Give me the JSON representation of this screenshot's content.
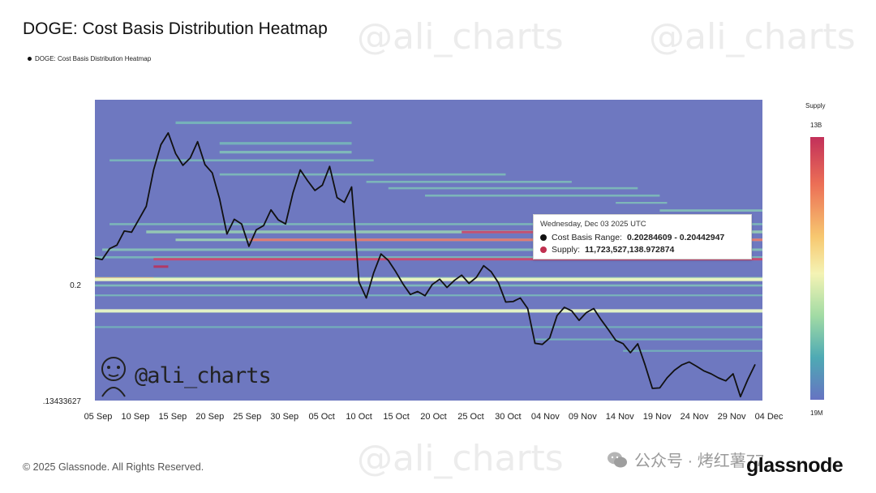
{
  "title": "DOGE: Cost Basis Distribution Heatmap",
  "legend_label": "DOGE: Cost Basis Distribution Heatmap",
  "watermark_text": "@ali_charts",
  "handle": "@ali_charts",
  "tooltip": {
    "date": "Wednesday, Dec 03 2025 UTC",
    "cost_basis_label": "Cost Basis Range:",
    "cost_basis_value": "0.20284609 - 0.20442947",
    "supply_label": "Supply:",
    "supply_value": "11,723,527,138.972874"
  },
  "colorbar": {
    "title": "Supply",
    "max_label": "13B",
    "min_label": "19M"
  },
  "footer": "© 2025 Glassnode. All Rights Reserved.",
  "brand": "glassnode",
  "wechat_text": "公众号 · 烤红薯77",
  "colors": {
    "price_line": "#111111",
    "heat_base": "#6e78c0",
    "tooltip_dot_cost": "#111111",
    "tooltip_dot_supply": "#c0304f"
  },
  "chart_data": {
    "type": "heatmap",
    "title": "DOGE: Cost Basis Distribution Heatmap",
    "y_tick_labels": [
      "0.2",
      ".13433627"
    ],
    "x_tick_labels": [
      "05 Sep",
      "10 Sep",
      "15 Sep",
      "20 Sep",
      "25 Sep",
      "30 Sep",
      "05 Oct",
      "10 Oct",
      "15 Oct",
      "20 Oct",
      "25 Oct",
      "30 Oct",
      "04 Nov",
      "09 Nov",
      "14 Nov",
      "19 Nov",
      "24 Nov",
      "29 Nov",
      "04 Dec"
    ],
    "x_start": "2025-09-04",
    "x_end": "2025-12-04",
    "ylim": [
      0.1343,
      0.305
    ],
    "price_series": {
      "name": "DOGE price",
      "points": [
        [
          "2025-09-04",
          0.2152
        ],
        [
          "2025-09-05",
          0.2143
        ],
        [
          "2025-09-06",
          0.2205
        ],
        [
          "2025-09-07",
          0.2225
        ],
        [
          "2025-09-08",
          0.2305
        ],
        [
          "2025-09-09",
          0.2298
        ],
        [
          "2025-09-10",
          0.2372
        ],
        [
          "2025-09-11",
          0.2445
        ],
        [
          "2025-09-12",
          0.2652
        ],
        [
          "2025-09-13",
          0.2795
        ],
        [
          "2025-09-14",
          0.2862
        ],
        [
          "2025-09-15",
          0.2745
        ],
        [
          "2025-09-16",
          0.2678
        ],
        [
          "2025-09-17",
          0.272
        ],
        [
          "2025-09-18",
          0.2812
        ],
        [
          "2025-09-19",
          0.2682
        ],
        [
          "2025-09-20",
          0.2635
        ],
        [
          "2025-09-21",
          0.2488
        ],
        [
          "2025-09-22",
          0.2288
        ],
        [
          "2025-09-23",
          0.2372
        ],
        [
          "2025-09-24",
          0.2345
        ],
        [
          "2025-09-25",
          0.2218
        ],
        [
          "2025-09-26",
          0.2312
        ],
        [
          "2025-09-27",
          0.2336
        ],
        [
          "2025-09-28",
          0.2425
        ],
        [
          "2025-09-29",
          0.2368
        ],
        [
          "2025-09-30",
          0.2345
        ],
        [
          "2025-10-01",
          0.2522
        ],
        [
          "2025-10-02",
          0.2652
        ],
        [
          "2025-10-03",
          0.259
        ],
        [
          "2025-10-04",
          0.2535
        ],
        [
          "2025-10-05",
          0.2565
        ],
        [
          "2025-10-06",
          0.2672
        ],
        [
          "2025-10-07",
          0.2495
        ],
        [
          "2025-10-08",
          0.2468
        ],
        [
          "2025-10-09",
          0.2555
        ],
        [
          "2025-10-10",
          0.2015
        ],
        [
          "2025-10-11",
          0.1925
        ],
        [
          "2025-10-12",
          0.2068
        ],
        [
          "2025-10-13",
          0.2175
        ],
        [
          "2025-10-14",
          0.2138
        ],
        [
          "2025-10-15",
          0.2075
        ],
        [
          "2025-10-16",
          0.2005
        ],
        [
          "2025-10-17",
          0.1945
        ],
        [
          "2025-10-18",
          0.1962
        ],
        [
          "2025-10-19",
          0.1938
        ],
        [
          "2025-10-20",
          0.2002
        ],
        [
          "2025-10-21",
          0.2032
        ],
        [
          "2025-10-22",
          0.1985
        ],
        [
          "2025-10-23",
          0.2025
        ],
        [
          "2025-10-24",
          0.2055
        ],
        [
          "2025-10-25",
          0.2008
        ],
        [
          "2025-10-26",
          0.2042
        ],
        [
          "2025-10-27",
          0.2108
        ],
        [
          "2025-10-28",
          0.2075
        ],
        [
          "2025-10-29",
          0.2012
        ],
        [
          "2025-10-30",
          0.1902
        ],
        [
          "2025-10-31",
          0.1905
        ],
        [
          "2025-11-01",
          0.1925
        ],
        [
          "2025-11-02",
          0.1865
        ],
        [
          "2025-11-03",
          0.1668
        ],
        [
          "2025-11-04",
          0.1662
        ],
        [
          "2025-11-05",
          0.1698
        ],
        [
          "2025-11-06",
          0.1825
        ],
        [
          "2025-11-07",
          0.1872
        ],
        [
          "2025-11-08",
          0.1852
        ],
        [
          "2025-11-09",
          0.1798
        ],
        [
          "2025-11-10",
          0.1842
        ],
        [
          "2025-11-11",
          0.1865
        ],
        [
          "2025-11-12",
          0.1802
        ],
        [
          "2025-11-13",
          0.1745
        ],
        [
          "2025-11-14",
          0.1685
        ],
        [
          "2025-11-15",
          0.1666
        ],
        [
          "2025-11-16",
          0.1615
        ],
        [
          "2025-11-17",
          0.1665
        ],
        [
          "2025-11-18",
          0.1545
        ],
        [
          "2025-11-19",
          0.1412
        ],
        [
          "2025-11-20",
          0.1415
        ],
        [
          "2025-11-21",
          0.1472
        ],
        [
          "2025-11-22",
          0.1515
        ],
        [
          "2025-11-23",
          0.1545
        ],
        [
          "2025-11-24",
          0.1562
        ],
        [
          "2025-11-25",
          0.1538
        ],
        [
          "2025-11-26",
          0.1512
        ],
        [
          "2025-11-27",
          0.1495
        ],
        [
          "2025-11-28",
          0.1472
        ],
        [
          "2025-11-29",
          0.1455
        ],
        [
          "2025-11-30",
          0.1495
        ],
        [
          "2025-12-01",
          0.1365
        ],
        [
          "2025-12-02",
          0.1462
        ],
        [
          "2025-12-03",
          0.1548
        ]
      ]
    },
    "bands": [
      {
        "y_low": 0.2912,
        "y_high": 0.2927,
        "x_from": "2025-09-15",
        "x_to": "2025-10-09",
        "intensity": 0.35
      },
      {
        "y_low": 0.2795,
        "y_high": 0.281,
        "x_from": "2025-09-21",
        "x_to": "2025-10-09",
        "intensity": 0.35
      },
      {
        "y_low": 0.2745,
        "y_high": 0.276,
        "x_from": "2025-09-21",
        "x_to": "2025-10-09",
        "intensity": 0.5
      },
      {
        "y_low": 0.27,
        "y_high": 0.2712,
        "x_from": "2025-09-06",
        "x_to": "2025-10-12",
        "intensity": 0.4
      },
      {
        "y_low": 0.262,
        "y_high": 0.2632,
        "x_from": "2025-09-21",
        "x_to": "2025-10-30",
        "intensity": 0.45
      },
      {
        "y_low": 0.2578,
        "y_high": 0.259,
        "x_from": "2025-10-11",
        "x_to": "2025-11-08",
        "intensity": 0.45
      },
      {
        "y_low": 0.2542,
        "y_high": 0.2554,
        "x_from": "2025-10-14",
        "x_to": "2025-11-17",
        "intensity": 0.45
      },
      {
        "y_low": 0.25,
        "y_high": 0.2512,
        "x_from": "2025-10-19",
        "x_to": "2025-11-20",
        "intensity": 0.45
      },
      {
        "y_low": 0.246,
        "y_high": 0.247,
        "x_from": "2025-11-14",
        "x_to": "2025-11-21",
        "intensity": 0.5
      },
      {
        "y_low": 0.2415,
        "y_high": 0.2428,
        "x_from": "2025-11-20",
        "x_to": "2025-12-04",
        "intensity": 0.55
      },
      {
        "y_low": 0.2338,
        "y_high": 0.235,
        "x_from": "2025-09-06",
        "x_to": "2025-12-04",
        "intensity": 0.45
      },
      {
        "y_low": 0.2292,
        "y_high": 0.2308,
        "x_from": "2025-09-11",
        "x_to": "2025-12-04",
        "intensity": 0.85
      },
      {
        "y_low": 0.2248,
        "y_high": 0.2262,
        "x_from": "2025-09-15",
        "x_to": "2025-12-04",
        "intensity": 0.95
      },
      {
        "y_low": 0.2192,
        "y_high": 0.2206,
        "x_from": "2025-09-05",
        "x_to": "2025-12-04",
        "intensity": 0.6
      },
      {
        "y_low": 0.215,
        "y_high": 0.2162,
        "x_from": "2025-09-04",
        "x_to": "2025-12-04",
        "intensity": 0.4
      },
      {
        "y_low": 0.2028,
        "y_high": 0.2044,
        "x_from": "2025-09-04",
        "x_to": "2025-12-04",
        "intensity": 0.75
      },
      {
        "y_low": 0.199,
        "y_high": 0.2002,
        "x_from": "2025-09-04",
        "x_to": "2025-12-04",
        "intensity": 0.5
      },
      {
        "y_low": 0.1935,
        "y_high": 0.1945,
        "x_from": "2025-09-04",
        "x_to": "2025-12-04",
        "intensity": 0.4
      },
      {
        "y_low": 0.1842,
        "y_high": 0.1854,
        "x_from": "2025-09-04",
        "x_to": "2025-12-04",
        "intensity": 0.7
      },
      {
        "y_low": 0.1755,
        "y_high": 0.1765,
        "x_from": "2025-09-04",
        "x_to": "2025-12-04",
        "intensity": 0.3
      },
      {
        "y_low": 0.1685,
        "y_high": 0.1695,
        "x_from": "2025-11-03",
        "x_to": "2025-12-04",
        "intensity": 0.35
      },
      {
        "y_low": 0.162,
        "y_high": 0.163,
        "x_from": "2025-11-15",
        "x_to": "2025-12-04",
        "intensity": 0.3
      }
    ],
    "hot_bands": [
      {
        "y_low": 0.2292,
        "y_high": 0.2306,
        "x_from": "2025-10-24",
        "x_to": "2025-11-10",
        "color": "#c8416a"
      },
      {
        "y_low": 0.2252,
        "y_high": 0.2262,
        "x_from": "2025-09-25",
        "x_to": "2025-12-04",
        "color": "#e7726d"
      },
      {
        "y_low": 0.214,
        "y_high": 0.2152,
        "x_from": "2025-09-12",
        "x_to": "2025-12-04",
        "color": "#d0466a"
      },
      {
        "y_low": 0.21,
        "y_high": 0.211,
        "x_from": "2025-09-12",
        "x_to": "2025-09-14",
        "color": "#b8325c"
      },
      {
        "y_low": 0.2032,
        "y_high": 0.2042,
        "x_from": "2025-09-04",
        "x_to": "2025-09-12",
        "color": "#f0a06c"
      }
    ],
    "light_lines": [
      {
        "y": 0.203,
        "color": "#e7f3c0"
      },
      {
        "y": 0.1852,
        "color": "#e3f2c6"
      }
    ]
  }
}
